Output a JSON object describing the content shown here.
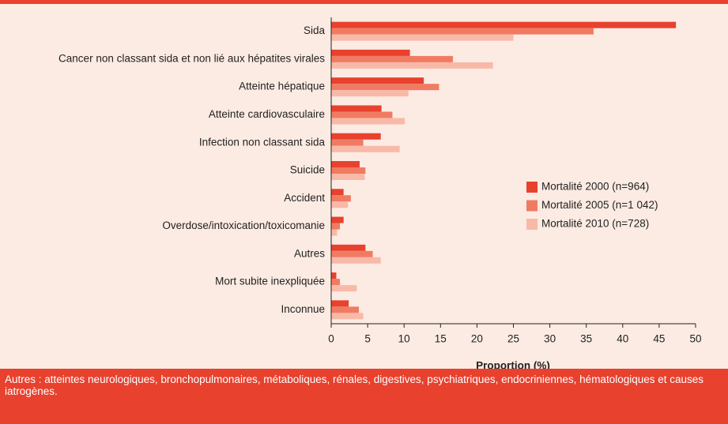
{
  "chart_data": {
    "type": "hbar",
    "categories": [
      "Sida",
      "Cancer non classant sida et non lié aux hépatites virales",
      "Atteinte hépatique",
      "Atteinte cardiovasculaire",
      "Infection non classant sida",
      "Suicide",
      "Accident",
      "Overdose/intoxication/toxicomanie",
      "Autres",
      "Mort subite inexpliquée",
      "Inconnue"
    ],
    "series": [
      {
        "name": "Mortalité 2000 (n=964)",
        "color": "#e8412e",
        "values": [
          47.3,
          10.8,
          12.7,
          6.9,
          6.8,
          3.9,
          1.7,
          1.7,
          4.7,
          0.7,
          2.4
        ]
      },
      {
        "name": "Mortalité 2005 (n=1 042)",
        "color": "#f07b63",
        "values": [
          36,
          16.7,
          14.8,
          8.4,
          4.4,
          4.7,
          2.7,
          1.2,
          5.7,
          1.2,
          3.8
        ]
      },
      {
        "name": "Mortalité 2010 (n=728)",
        "color": "#f8b9a8",
        "values": [
          25,
          22.2,
          10.6,
          10.1,
          9.4,
          4.6,
          2.3,
          0.8,
          6.8,
          3.5,
          4.4
        ]
      }
    ],
    "xlabel": "Proportion (%)",
    "xlim": [
      0,
      50
    ],
    "xticks": [
      0,
      5,
      10,
      15,
      20,
      25,
      30,
      35,
      40,
      45,
      50
    ],
    "legend": "right",
    "note": "Autres : atteintes neurologiques, bronchopulmonaires, métaboliques, rénales, digestives, psychiatriques, endocriniennes, hématologiques et causes iatrogènes."
  }
}
